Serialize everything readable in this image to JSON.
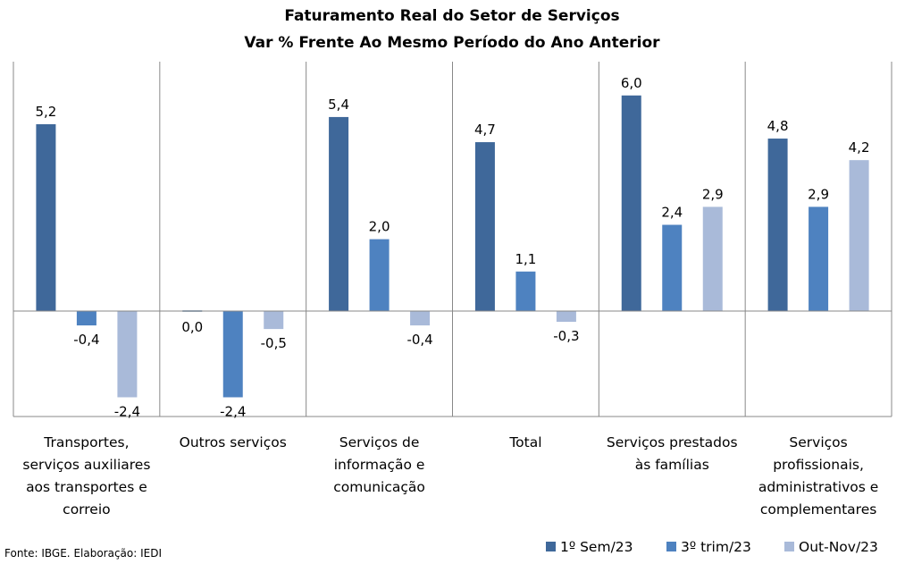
{
  "chart_data": {
    "type": "bar",
    "title": "Faturamento Real do Setor de Serviços",
    "subtitle": "Var % Frente Ao Mesmo Período do Ano Anterior",
    "categories": [
      [
        "Transportes,",
        "serviços auxiliares",
        "aos transportes e",
        "correio"
      ],
      [
        "Outros serviços"
      ],
      [
        "Serviços de",
        "informação e",
        "comunicação"
      ],
      [
        "Total"
      ],
      [
        "Serviços prestados",
        "às famílias"
      ],
      [
        "Serviços",
        "profissionais,",
        "administrativos e",
        "complementares"
      ]
    ],
    "series": [
      {
        "name": "1º Sem/23",
        "color": "#3f689a",
        "values": [
          5.2,
          0.0,
          5.4,
          4.7,
          6.0,
          4.8
        ],
        "labels": [
          "5,2",
          "0,0",
          "5,4",
          "4,7",
          "6,0",
          "4,8"
        ]
      },
      {
        "name": "3º trim/23",
        "color": "#4e82c0",
        "values": [
          -0.4,
          -2.4,
          2.0,
          1.1,
          2.4,
          2.9
        ],
        "labels": [
          "-0,4",
          "-2,4",
          "2,0",
          "1,1",
          "2,4",
          "2,9"
        ]
      },
      {
        "name": "Out-Nov/23",
        "color": "#a9bad9",
        "values": [
          -2.4,
          -0.5,
          -0.4,
          -0.3,
          2.9,
          4.2
        ],
        "labels": [
          "-2,4",
          "-0,5",
          "-0,4",
          "-0,3",
          "2,9",
          "4,2"
        ]
      }
    ],
    "ylim": [
      -3.0,
      7.0
    ],
    "grid": false,
    "legend_position": "bottom-right"
  },
  "source": "Fonte: IBGE. Elaboração: IEDI"
}
